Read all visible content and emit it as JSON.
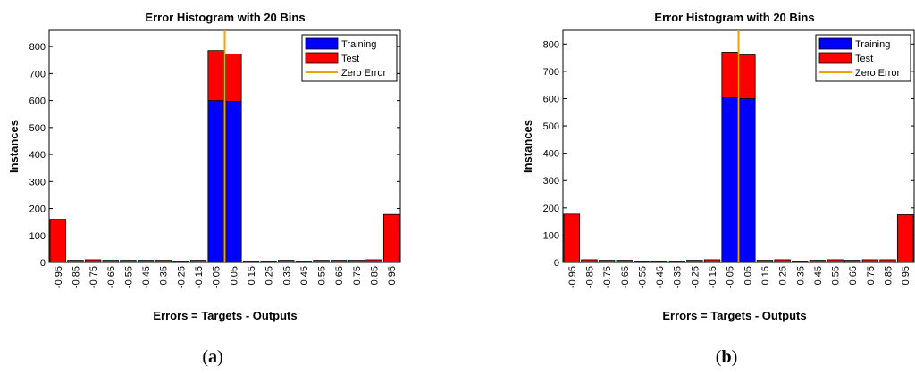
{
  "colors": {
    "training": "#0000ff",
    "test": "#ff0000",
    "zero_error": "#f0a000",
    "axes": "#000000",
    "bar_edge": "#000000"
  },
  "chart_data": [
    {
      "type": "bar",
      "stacked": true,
      "title": "Error Histogram with 20 Bins",
      "xlabel": "Errors = Targets - Outputs",
      "ylabel": "Instances",
      "ylim": [
        0,
        860
      ],
      "yticks": [
        0,
        100,
        200,
        300,
        400,
        500,
        600,
        700,
        800
      ],
      "categories": [
        "-0.95",
        "-0.85",
        "-0.75",
        "-0.65",
        "-0.55",
        "-0.45",
        "-0.35",
        "-0.25",
        "-0.15",
        "-0.05",
        "0.05",
        "0.15",
        "0.25",
        "0.35",
        "0.45",
        "0.55",
        "0.65",
        "0.75",
        "0.85",
        "0.95"
      ],
      "series": [
        {
          "name": "Training",
          "values": [
            0,
            0,
            0,
            0,
            0,
            0,
            0,
            0,
            0,
            600,
            597,
            0,
            0,
            0,
            0,
            0,
            0,
            0,
            0,
            0
          ]
        },
        {
          "name": "Test",
          "values": [
            160,
            8,
            10,
            8,
            8,
            8,
            8,
            5,
            8,
            185,
            175,
            5,
            5,
            8,
            5,
            8,
            8,
            8,
            10,
            178
          ]
        }
      ],
      "zero_error_line": {
        "name": "Zero Error",
        "x": 0
      },
      "grid": false,
      "legend": "top-right",
      "caption_letter": "a"
    },
    {
      "type": "bar",
      "stacked": true,
      "title": "Error Histogram with 20 Bins",
      "xlabel": "Errors = Targets - Outputs",
      "ylabel": "Instances",
      "ylim": [
        0,
        850
      ],
      "yticks": [
        0,
        100,
        200,
        300,
        400,
        500,
        600,
        700,
        800
      ],
      "categories": [
        "-0.95",
        "-0.85",
        "-0.75",
        "-0.65",
        "-0.55",
        "-0.45",
        "-0.35",
        "-0.25",
        "-0.15",
        "-0.05",
        "0.05",
        "0.15",
        "0.25",
        "0.35",
        "0.45",
        "0.55",
        "0.65",
        "0.75",
        "0.85",
        "0.95"
      ],
      "series": [
        {
          "name": "Training",
          "values": [
            0,
            0,
            0,
            0,
            0,
            0,
            0,
            0,
            0,
            603,
            600,
            0,
            0,
            0,
            0,
            0,
            0,
            0,
            0,
            0
          ]
        },
        {
          "name": "Test",
          "values": [
            177,
            10,
            8,
            8,
            5,
            5,
            5,
            8,
            10,
            167,
            160,
            8,
            10,
            5,
            8,
            10,
            8,
            10,
            10,
            175
          ]
        }
      ],
      "zero_error_line": {
        "name": "Zero Error",
        "x": 0
      },
      "grid": false,
      "legend": "top-right",
      "caption_letter": "b"
    }
  ]
}
